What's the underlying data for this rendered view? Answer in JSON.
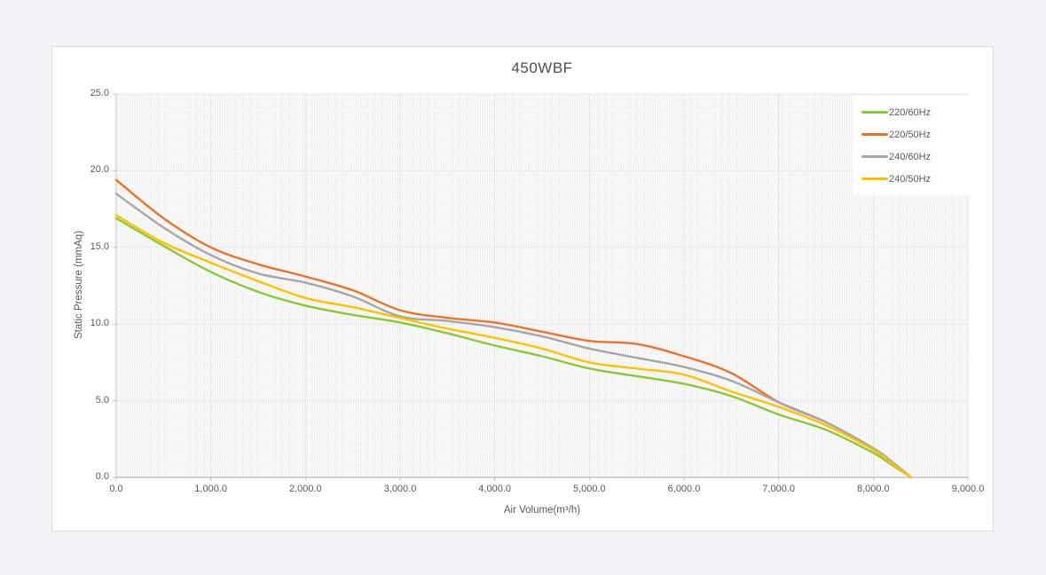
{
  "page": {
    "background_color": "#f3f4f5",
    "card_background": "#ffffff",
    "card_border_color": "#dcdcdc",
    "text_color": "#595959",
    "gridline_color": "#e4e4e4",
    "axis_line_color": "#c2c2c2"
  },
  "chart_data": {
    "type": "line",
    "title": "450WBF",
    "xlabel": "Air Volume(m³/h)",
    "ylabel": "Static Pressure (mmAq)",
    "xlim": [
      0,
      9000
    ],
    "ylim": [
      0,
      25
    ],
    "grid": true,
    "legend_position": "top-right",
    "x_tick_labels": [
      "0.0",
      "1,000.0",
      "2,000.0",
      "3,000.0",
      "4,000.0",
      "5,000.0",
      "6,000.0",
      "7,000.0",
      "8,000.0",
      "9,000.0"
    ],
    "y_tick_labels": [
      "0.0",
      "5.0",
      "10.0",
      "15.0",
      "20.0",
      "25.0"
    ],
    "x": [
      0,
      500,
      1000,
      1500,
      2000,
      2500,
      3000,
      3500,
      4000,
      4500,
      5000,
      5500,
      6000,
      6500,
      7000,
      7500,
      8000,
      8200,
      8400
    ],
    "series": [
      {
        "name": "220/60Hz",
        "color": "#8CC63F",
        "values": [
          16.9,
          15.1,
          13.4,
          12.1,
          11.2,
          10.6,
          10.1,
          9.4,
          8.6,
          7.9,
          7.1,
          6.6,
          6.1,
          5.3,
          4.1,
          3.1,
          1.6,
          0.8,
          0.0
        ]
      },
      {
        "name": "220/50Hz",
        "color": "#E8742C",
        "values": [
          19.4,
          16.9,
          15.0,
          13.9,
          13.1,
          12.2,
          10.9,
          10.4,
          10.1,
          9.5,
          8.9,
          8.7,
          7.9,
          6.8,
          4.9,
          3.6,
          1.9,
          1.0,
          0.0
        ]
      },
      {
        "name": "240/60Hz",
        "color": "#A6A6A6",
        "values": [
          18.5,
          16.3,
          14.5,
          13.3,
          12.7,
          11.8,
          10.5,
          10.2,
          9.8,
          9.2,
          8.4,
          7.8,
          7.2,
          6.3,
          4.9,
          3.6,
          1.9,
          1.0,
          0.0
        ]
      },
      {
        "name": "240/50Hz",
        "color": "#FFC000",
        "values": [
          17.1,
          15.3,
          14.0,
          12.8,
          11.7,
          11.1,
          10.4,
          9.7,
          9.1,
          8.4,
          7.5,
          7.1,
          6.7,
          5.6,
          4.6,
          3.4,
          1.8,
          0.9,
          0.0
        ]
      }
    ]
  }
}
